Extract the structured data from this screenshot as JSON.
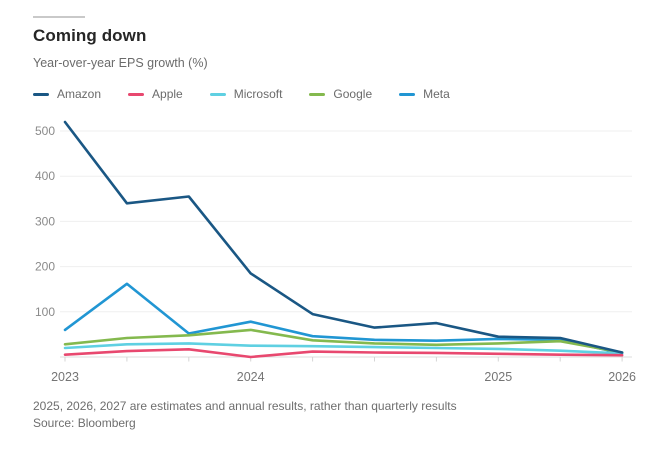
{
  "header": {
    "title": "Coming down",
    "subtitle": "Year-over-year EPS growth (%)"
  },
  "footer": {
    "note": "2025, 2026, 2027 are estimates and annual results, rather than quarterly results",
    "source": "Source: Bloomberg"
  },
  "chart_data": {
    "type": "line",
    "title": "Coming down",
    "ylabel": "Year-over-year EPS growth (%)",
    "xlabel": "",
    "n_points": 10,
    "x_tick_labels": [
      {
        "index": 0,
        "label": "2023"
      },
      {
        "index": 3,
        "label": "2024"
      },
      {
        "index": 7,
        "label": "2025"
      },
      {
        "index": 9,
        "label": "2026"
      }
    ],
    "yticks": [
      100,
      200,
      300,
      400,
      500
    ],
    "ylim": [
      0,
      540
    ],
    "grid": "horizontal",
    "legend_position": "top-left",
    "series": [
      {
        "name": "Amazon",
        "color": "#1a5784",
        "values": [
          520,
          340,
          355,
          185,
          95,
          65,
          75,
          45,
          42,
          10
        ]
      },
      {
        "name": "Apple",
        "color": "#e8486f",
        "values": [
          5,
          13,
          17,
          0,
          12,
          10,
          9,
          7,
          5,
          4
        ]
      },
      {
        "name": "Microsoft",
        "color": "#5fd0e2",
        "values": [
          20,
          28,
          30,
          25,
          24,
          22,
          20,
          18,
          14,
          8
        ]
      },
      {
        "name": "Google",
        "color": "#84b94e",
        "values": [
          28,
          42,
          48,
          60,
          37,
          30,
          27,
          30,
          35,
          10
        ]
      },
      {
        "name": "Meta",
        "color": "#2196d3",
        "values": [
          60,
          162,
          52,
          78,
          46,
          38,
          36,
          40,
          38,
          8
        ]
      }
    ]
  }
}
